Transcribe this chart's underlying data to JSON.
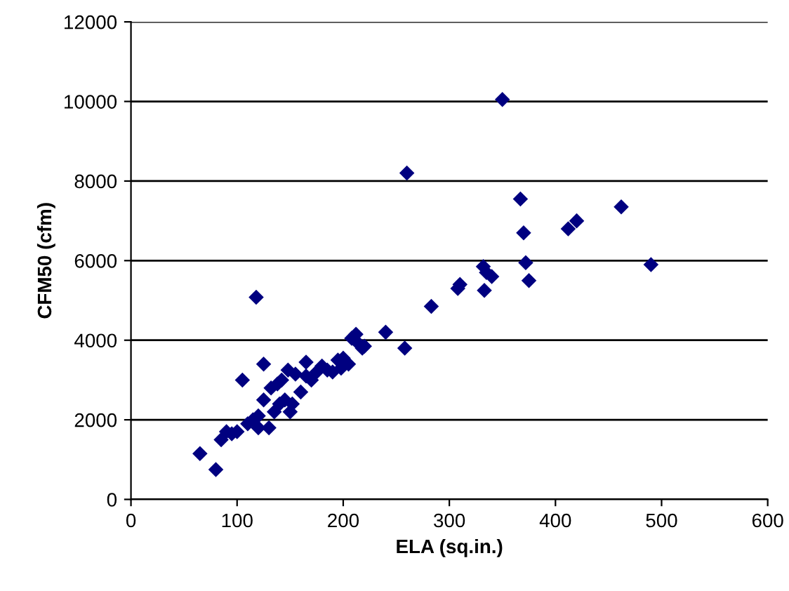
{
  "chart_data": {
    "type": "scatter",
    "xlabel": "ELA (sq.in.)",
    "ylabel": "CFM50 (cfm)",
    "series": [
      {
        "color": "#000080",
        "x": [
          65,
          80,
          85,
          90,
          95,
          100,
          105,
          110,
          115,
          118,
          120,
          120,
          125,
          125,
          130,
          132,
          135,
          138,
          140,
          142,
          145,
          148,
          150,
          152,
          155,
          160,
          165,
          165,
          170,
          175,
          180,
          185,
          190,
          195,
          198,
          200,
          205,
          208,
          212,
          215,
          218,
          220,
          240,
          258,
          260,
          283,
          308,
          310,
          332,
          333,
          335,
          340,
          350,
          367,
          370,
          372,
          375,
          412,
          420,
          462,
          490
        ],
        "values": [
          1150,
          750,
          1500,
          1700,
          1650,
          1700,
          3000,
          1900,
          2000,
          5080,
          2100,
          1800,
          2500,
          3400,
          1800,
          2800,
          2200,
          2900,
          2400,
          3000,
          2500,
          3250,
          2200,
          2400,
          3150,
          2700,
          3100,
          3450,
          3000,
          3200,
          3350,
          3250,
          3200,
          3500,
          3300,
          3550,
          3400,
          4050,
          4150,
          3900,
          3800,
          3850,
          4200,
          3800,
          8200,
          4850,
          5300,
          5400,
          5850,
          5250,
          5700,
          5600,
          10050,
          7550,
          6700,
          5950,
          5500,
          6800,
          7000,
          7350,
          5900
        ]
      }
    ],
    "marker": "diamond",
    "grid": "y",
    "xlim": [
      0,
      600
    ],
    "xticks": [
      0,
      100,
      200,
      300,
      400,
      500,
      600
    ],
    "ylim": [
      0,
      12000
    ],
    "yticks": [
      0,
      2000,
      4000,
      6000,
      8000,
      10000,
      12000
    ]
  }
}
